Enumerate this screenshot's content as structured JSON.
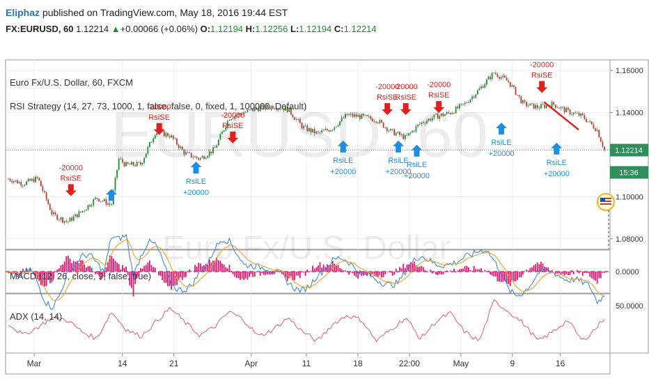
{
  "header": {
    "author": "Eliphaz",
    "published_text": "published on TradingView.com, May 18, 2016 19:44 EST",
    "symbol": "FX:EURUSD, 60",
    "last": "1.12214",
    "change": "+0.00066 (+0.06%)",
    "o_label": "O:",
    "o_value": "1.12194",
    "h_label": "H:",
    "h_value": "1.12256",
    "l_label": "L:",
    "l_value": "1.12194",
    "c_label": "C:",
    "c_value": "1.12214"
  },
  "colors": {
    "up": "#1a8f2e",
    "down": "#c0392b",
    "sell_signal": "#e0201c",
    "buy_signal": "#1e8fe0",
    "author": "#2a74b8",
    "macd_line": "#2f7fd6",
    "signal_line": "#f39c12",
    "histogram": "#e6136e",
    "adx_line": "#e05050",
    "last_price_tag": "#2f8f5b"
  },
  "chart_data": [
    {
      "type": "line",
      "pane": "price",
      "title": "Euro Fx/U.S. Dollar, 60, FXCM",
      "watermark_symbol": "EURUSD, 60",
      "watermark_name": "Euro Fx/U.S. Dollar",
      "indicator": "RSI Strategy (14, 27, 73, 1000, 1, false, false, 0, fixed, 1, 100000, Default)",
      "ylim": [
        1.075,
        1.165
      ],
      "yticks": [
        "1.16000",
        "1.14000",
        "1.12214",
        "1.10000",
        "1.08000"
      ],
      "last_price": 1.12214,
      "time_badge": "15:36",
      "x": [
        0,
        2,
        4,
        6,
        8,
        10,
        12,
        14,
        15,
        16,
        18,
        20,
        22,
        24,
        26,
        28,
        30,
        32,
        34,
        36,
        38,
        40,
        42,
        44,
        46,
        48,
        50,
        52,
        54,
        56,
        58,
        60,
        62,
        64,
        66,
        68,
        70,
        72,
        74,
        76,
        78,
        80,
        81
      ],
      "values": [
        1.1085,
        1.1062,
        1.1088,
        1.0915,
        1.088,
        1.093,
        1.0995,
        1.096,
        1.118,
        1.115,
        1.1155,
        1.131,
        1.129,
        1.1205,
        1.118,
        1.1225,
        1.1375,
        1.14,
        1.142,
        1.143,
        1.1415,
        1.133,
        1.13,
        1.1325,
        1.1388,
        1.138,
        1.1366,
        1.131,
        1.128,
        1.135,
        1.138,
        1.1398,
        1.144,
        1.151,
        1.159,
        1.1545,
        1.144,
        1.1425,
        1.144,
        1.1405,
        1.1382,
        1.1318,
        1.1222
      ],
      "signals": [
        {
          "x": 8.5,
          "price": 1.1,
          "kind": "sell",
          "label": "RsiSE",
          "qty": "-20000"
        },
        {
          "x": 14.0,
          "price": 1.104,
          "kind": "buy",
          "label": "",
          "qty": ""
        },
        {
          "x": 20.5,
          "price": 1.129,
          "kind": "sell",
          "label": "RsiSE",
          "qty": "-20000"
        },
        {
          "x": 25.5,
          "price": 1.117,
          "kind": "buy",
          "label": "RsiLE",
          "qty": "+20000"
        },
        {
          "x": 30.5,
          "price": 1.125,
          "kind": "sell",
          "label": "RsiSE",
          "qty": "-20000"
        },
        {
          "x": 45.5,
          "price": 1.127,
          "kind": "buy",
          "label": "RsiLE",
          "qty": "+20000"
        },
        {
          "x": 51.5,
          "price": 1.1385,
          "kind": "sell",
          "label": "RsiSE",
          "qty": "-20000"
        },
        {
          "x": 53.0,
          "price": 1.127,
          "kind": "buy",
          "label": "RsiLE",
          "qty": "+20000"
        },
        {
          "x": 54.0,
          "price": 1.1385,
          "kind": "sell",
          "label": "RsiSE",
          "qty": "-20000"
        },
        {
          "x": 55.5,
          "price": 1.125,
          "kind": "buy",
          "label": "RsiLE",
          "qty": "+20000"
        },
        {
          "x": 58.5,
          "price": 1.1395,
          "kind": "sell",
          "label": "RsiSE",
          "qty": "-20000"
        },
        {
          "x": 67.0,
          "price": 1.1355,
          "kind": "buy",
          "label": "RsiLE",
          "qty": "+20000"
        },
        {
          "x": 72.5,
          "price": 1.149,
          "kind": "sell",
          "label": "RsiSE",
          "qty": "-20000"
        },
        {
          "x": 74.5,
          "price": 1.126,
          "kind": "buy",
          "label": "RsiLE",
          "qty": "+20000"
        }
      ]
    },
    {
      "type": "line",
      "pane": "macd",
      "title": "MACD (12, 26, close, 9, false, true)",
      "ylim": [
        -0.004,
        0.004
      ],
      "yticks": [
        "0.0000"
      ]
    },
    {
      "type": "line",
      "pane": "adx",
      "title": "ADX (14, 14)",
      "ylim": [
        10,
        60
      ],
      "yticks": [
        "50.0000"
      ],
      "x": [
        0,
        2,
        4,
        6,
        8,
        10,
        12,
        14,
        16,
        18,
        20,
        22,
        24,
        26,
        28,
        30,
        32,
        34,
        36,
        38,
        40,
        42,
        44,
        46,
        48,
        50,
        52,
        54,
        56,
        58,
        60,
        62,
        64,
        66,
        68,
        70,
        72,
        74,
        76,
        78,
        80,
        81
      ],
      "values": [
        35,
        25,
        32,
        40,
        38,
        28,
        22,
        45,
        30,
        24,
        36,
        48,
        36,
        25,
        32,
        45,
        38,
        24,
        30,
        40,
        28,
        20,
        34,
        42,
        38,
        20,
        30,
        40,
        22,
        36,
        44,
        28,
        20,
        54,
        45,
        35,
        20,
        28,
        38,
        20,
        32,
        40
      ]
    }
  ],
  "x_axis": {
    "ticks": [
      {
        "x": 3.5,
        "label": "Mar"
      },
      {
        "x": 15.5,
        "label": "14"
      },
      {
        "x": 22.5,
        "label": "21"
      },
      {
        "x": 33.0,
        "label": "Apr"
      },
      {
        "x": 40.5,
        "label": "11"
      },
      {
        "x": 47.5,
        "label": "18"
      },
      {
        "x": 54.5,
        "label": "22:00"
      },
      {
        "x": 61.5,
        "label": "May"
      },
      {
        "x": 68.5,
        "label": "9"
      },
      {
        "x": 75.0,
        "label": "16"
      }
    ]
  }
}
